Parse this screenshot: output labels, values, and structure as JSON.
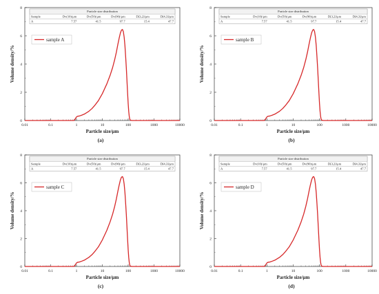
{
  "colors": {
    "curve": "#d62728",
    "axis": "#333333",
    "table_header_bg": "#f2f2f2",
    "table_border": "#999999"
  },
  "table": {
    "title": "Particle size distribution",
    "headers": [
      "Sample",
      "Dv(10)/μm",
      "Dv(50)/μm",
      "Dv(90)/μm",
      "D[3,2]/μm",
      "D[4,3]/μm"
    ],
    "row": [
      "A",
      "7.57",
      "41.5",
      "97.7",
      "15.4",
      "47.7"
    ]
  },
  "chart_data": [
    {
      "type": "line",
      "caption": "(a)",
      "xlabel": "Particle size/μm",
      "ylabel": "Volume density/%",
      "xscale": "log",
      "xlim": [
        0.01,
        10000
      ],
      "ylim": [
        0,
        8
      ],
      "xticks": [
        "0.01",
        "0.1",
        "1",
        "10",
        "100",
        "1000",
        "10000"
      ],
      "yticks": [
        "0",
        "2",
        "4",
        "6",
        "8"
      ],
      "legend_position": "top-left",
      "series": [
        {
          "name": "sample A",
          "x": [
            0.8,
            0.9,
            1.0,
            1.1,
            1.3,
            1.6,
            2,
            3,
            4,
            5,
            7,
            10,
            15,
            20,
            25,
            30,
            35,
            40,
            45,
            50,
            55,
            60,
            65,
            70,
            75,
            80,
            85,
            90,
            95,
            100,
            105,
            110,
            115,
            120,
            130,
            140
          ],
          "y": [
            0,
            0.12,
            0.25,
            0.3,
            0.32,
            0.38,
            0.45,
            0.65,
            0.85,
            1.05,
            1.4,
            1.9,
            2.6,
            3.2,
            3.75,
            4.3,
            4.85,
            5.4,
            5.85,
            6.2,
            6.4,
            6.45,
            6.3,
            5.9,
            5.3,
            4.5,
            3.7,
            2.8,
            1.95,
            1.2,
            0.65,
            0.3,
            0.1,
            0.03,
            0.01,
            0
          ]
        }
      ]
    },
    {
      "type": "line",
      "caption": "(b)",
      "xlabel": "Particle size/μm",
      "ylabel": "Volume density/%",
      "xscale": "log",
      "xlim": [
        0.01,
        10000
      ],
      "ylim": [
        0,
        8
      ],
      "xticks": [
        "0.01",
        "0.1",
        "1",
        "10",
        "100",
        "1000",
        "10000"
      ],
      "yticks": [
        "0",
        "2",
        "4",
        "6",
        "8"
      ],
      "legend_position": "top-left",
      "series": [
        {
          "name": "sample B",
          "x": [
            0.8,
            0.9,
            1.0,
            1.1,
            1.3,
            1.6,
            2,
            3,
            4,
            5,
            7,
            10,
            15,
            20,
            25,
            30,
            35,
            40,
            45,
            50,
            55,
            60,
            65,
            70,
            75,
            80,
            85,
            90,
            95,
            100,
            105,
            110,
            115,
            120,
            130,
            140
          ],
          "y": [
            0,
            0.12,
            0.25,
            0.3,
            0.32,
            0.38,
            0.45,
            0.65,
            0.85,
            1.05,
            1.4,
            1.9,
            2.6,
            3.2,
            3.75,
            4.3,
            4.85,
            5.4,
            5.85,
            6.2,
            6.4,
            6.45,
            6.3,
            5.9,
            5.3,
            4.5,
            3.7,
            2.8,
            1.95,
            1.2,
            0.65,
            0.3,
            0.1,
            0.03,
            0.01,
            0
          ]
        }
      ]
    },
    {
      "type": "line",
      "caption": "(c)",
      "xlabel": "Particle size/μm",
      "ylabel": "Volume density/%",
      "xscale": "log",
      "xlim": [
        0.01,
        10000
      ],
      "ylim": [
        0,
        8
      ],
      "xticks": [
        "0.01",
        "0.1",
        "1",
        "10",
        "100",
        "1000",
        "10000"
      ],
      "yticks": [
        "0",
        "2",
        "4",
        "6",
        "8"
      ],
      "legend_position": "top-left",
      "series": [
        {
          "name": "sample C",
          "x": [
            0.8,
            0.9,
            1.0,
            1.1,
            1.3,
            1.6,
            2,
            3,
            4,
            5,
            7,
            10,
            15,
            20,
            25,
            30,
            35,
            40,
            45,
            50,
            55,
            60,
            65,
            70,
            75,
            80,
            85,
            90,
            95,
            100,
            105,
            110,
            115,
            120,
            130,
            140
          ],
          "y": [
            0,
            0.12,
            0.25,
            0.3,
            0.32,
            0.38,
            0.45,
            0.65,
            0.85,
            1.05,
            1.4,
            1.9,
            2.6,
            3.2,
            3.75,
            4.3,
            4.85,
            5.4,
            5.85,
            6.2,
            6.4,
            6.45,
            6.3,
            5.9,
            5.3,
            4.5,
            3.7,
            2.8,
            1.95,
            1.2,
            0.65,
            0.3,
            0.1,
            0.03,
            0.01,
            0
          ]
        }
      ]
    },
    {
      "type": "line",
      "caption": "(d)",
      "xlabel": "Particle size/μm",
      "ylabel": "Volume density/%",
      "xscale": "log",
      "xlim": [
        0.01,
        10000
      ],
      "ylim": [
        0,
        8
      ],
      "xticks": [
        "0.01",
        "0.1",
        "1",
        "10",
        "100",
        "1000",
        "10000"
      ],
      "yticks": [
        "0",
        "2",
        "4",
        "6",
        "8"
      ],
      "legend_position": "top-left",
      "series": [
        {
          "name": "sample D",
          "x": [
            0.8,
            0.9,
            1.0,
            1.1,
            1.3,
            1.6,
            2,
            3,
            4,
            5,
            7,
            10,
            15,
            20,
            25,
            30,
            35,
            40,
            45,
            50,
            55,
            60,
            65,
            70,
            75,
            80,
            85,
            90,
            95,
            100,
            105,
            110,
            115,
            120,
            130,
            140
          ],
          "y": [
            0,
            0.12,
            0.25,
            0.3,
            0.32,
            0.38,
            0.45,
            0.65,
            0.85,
            1.05,
            1.4,
            1.9,
            2.6,
            3.2,
            3.75,
            4.3,
            4.85,
            5.4,
            5.85,
            6.2,
            6.4,
            6.45,
            6.3,
            5.9,
            5.3,
            4.5,
            3.7,
            2.8,
            1.95,
            1.2,
            0.65,
            0.3,
            0.1,
            0.03,
            0.01,
            0
          ]
        }
      ]
    }
  ]
}
